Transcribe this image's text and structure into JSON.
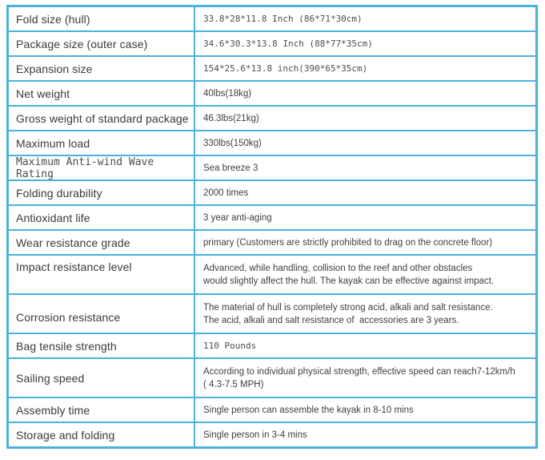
{
  "colors": {
    "border_blue": "#4cb2dd",
    "label_text": "#3a3a3a",
    "value_text": "#3f3f3f"
  },
  "table": {
    "rows": [
      {
        "label": "Fold size (hull)",
        "value": "33.8*28*11.8 Inch (86*71*30cm)",
        "label_style": "sans",
        "value_style": "mono"
      },
      {
        "label": "Package size (outer case)",
        "value": "34.6*30.3*13.8 Inch (88*77*35cm)",
        "label_style": "sans",
        "value_style": "mono"
      },
      {
        "label": "Expansion size",
        "value": "154*25.6*13.8 inch(390*65*35cm)",
        "label_style": "sans",
        "value_style": "mono"
      },
      {
        "label": "Net weight",
        "value": "40lbs(18kg)",
        "label_style": "sans",
        "value_style": "sans"
      },
      {
        "label": "Gross weight of standard package",
        "value": "46.3lbs(21kg)",
        "label_style": "sans",
        "value_style": "sans"
      },
      {
        "label": "Maximum load",
        "value": "330lbs(150kg)",
        "label_style": "sans",
        "value_style": "sans"
      },
      {
        "label": "Maximum Anti-wind Wave Rating",
        "value": "Sea breeze 3",
        "label_style": "mono",
        "value_style": "sans"
      },
      {
        "label": "Folding durability",
        "value": "2000 times",
        "label_style": "sans",
        "value_style": "sans"
      },
      {
        "label": "Antioxidant life",
        "value": "3 year anti-aging",
        "label_style": "sans",
        "value_style": "sans"
      },
      {
        "label": "Wear resistance grade",
        "value": "primary (Customers are strictly prohibited to drag on the concrete floor)",
        "label_style": "sans",
        "value_style": "sans"
      },
      {
        "label": "Impact resistance level",
        "value": "Advanced, while handling, collision to the reef and other obstacles\nwould slightly affect the hull. The kayak can be effective against impact.",
        "label_style": "sans",
        "value_style": "sans"
      },
      {
        "label": "Corrosion resistance",
        "value": "The material of hull is completely strong acid, alkali and salt resistance.\nThe acid, alkali and salt resistance of  accessories are 3 years.",
        "label_style": "sans",
        "value_style": "sans"
      },
      {
        "label": "Bag tensile strength",
        "value": "110 Pounds",
        "label_style": "sans",
        "value_style": "mono"
      },
      {
        "label": "Sailing speed",
        "value": "According to individual physical strength, effective speed can reach7-12km/h\n( 4.3-7.5 MPH)",
        "label_style": "sans",
        "value_style": "sans"
      },
      {
        "label": "Assembly time",
        "value": "Single person can assemble the kayak in 8-10 mins",
        "label_style": "sans",
        "value_style": "sans"
      },
      {
        "label": "Storage and folding",
        "value": "Single person in 3-4 mins",
        "label_style": "sans",
        "value_style": "sans"
      }
    ]
  }
}
